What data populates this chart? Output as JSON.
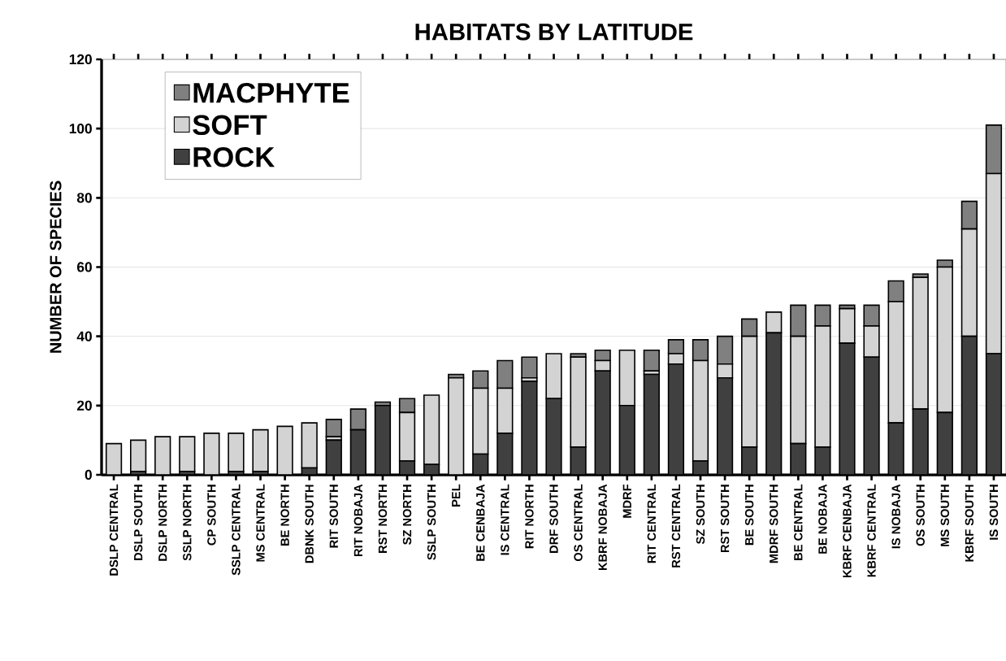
{
  "chart_data": {
    "type": "bar",
    "title": "HABITATS BY LATITUDE",
    "ylabel": "NUMBER OF SPECIES",
    "stacked": true,
    "grid": "y",
    "legend": "top left",
    "ylim": [
      0,
      120
    ],
    "yticks": [
      0,
      20,
      40,
      60,
      80,
      100,
      120
    ],
    "categories": [
      "DSLP CENTRAL",
      "DSLP SOUTH",
      "DSLP NORTH",
      "SSLP NORTH",
      "CP SOUTH",
      "SSLP CENTRAL",
      "MS CENTRAL",
      "BE NORTH",
      "DBNK SOUTH",
      "RIT SOUTH",
      "RIT NOBAJA",
      "RST NORTH",
      "SZ NORTH",
      "SSLP SOUTH",
      "PEL",
      "BE CENBAJA",
      "IS CENTRAL",
      "RIT NORTH",
      "DRF SOUTH",
      "OS CENTRAL",
      "KBRF NOBAJA",
      "MDRF",
      "RIT CENTRAL",
      "RST CENTRAL",
      "SZ SOUTH",
      "RST SOUTH",
      "BE SOUTH",
      "MDRF SOUTH",
      "BE CENTRAL",
      "BE NOBAJA",
      "KBRF CENBAJA",
      "KBRF CENTRAL",
      "IS NOBAJA",
      "OS SOUTH",
      "MS SOUTH",
      "KBRF SOUTH",
      "IS SOUTH"
    ],
    "series": [
      {
        "name": "ROCK",
        "color": "#404040",
        "values": [
          0,
          1,
          0,
          1,
          0,
          1,
          1,
          0,
          2,
          10,
          13,
          20,
          4,
          3,
          0,
          6,
          12,
          27,
          22,
          8,
          30,
          20,
          29,
          32,
          4,
          28,
          8,
          41,
          9,
          8,
          38,
          34,
          15,
          19,
          18,
          40,
          35
        ]
      },
      {
        "name": "SOFT",
        "color": "#d3d3d3",
        "values": [
          9,
          9,
          11,
          10,
          12,
          11,
          12,
          14,
          13,
          1,
          0,
          0,
          14,
          20,
          28,
          19,
          13,
          1,
          13,
          26,
          3,
          16,
          1,
          3,
          29,
          4,
          32,
          6,
          31,
          35,
          10,
          9,
          35,
          38,
          42,
          31,
          52
        ]
      },
      {
        "name": "MACPHYTE",
        "color": "#808080",
        "values": [
          0,
          0,
          0,
          0,
          0,
          0,
          0,
          0,
          0,
          5,
          6,
          1,
          4,
          0,
          1,
          5,
          8,
          6,
          0,
          1,
          3,
          0,
          6,
          4,
          6,
          8,
          5,
          0,
          9,
          6,
          1,
          6,
          6,
          1,
          2,
          8,
          14
        ]
      }
    ]
  }
}
